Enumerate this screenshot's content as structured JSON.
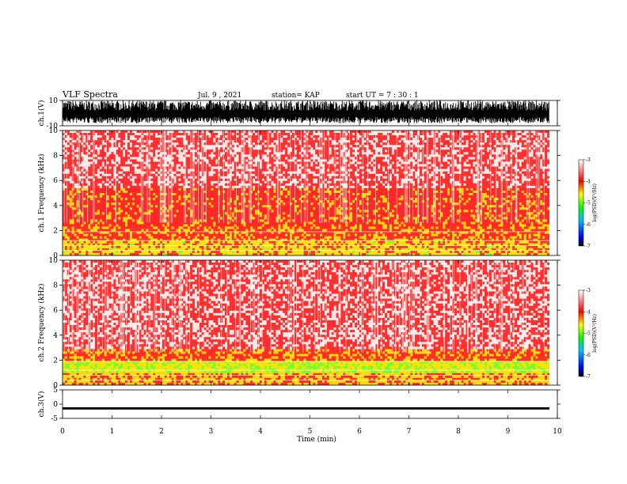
{
  "header": {
    "title": "VLF Spectra",
    "date": "Jul. 9 , 2021",
    "station": "station= KAP",
    "start": "start UT = 7 : 30 : 1"
  },
  "chart_data": [
    {
      "type": "line",
      "name": "ch1-waveform",
      "ylabel": "ch.1(V)",
      "ylim": [
        -10,
        10
      ],
      "yticks": [
        "10",
        "-10"
      ],
      "xlim": [
        0,
        10
      ],
      "series": [
        {
          "values_summary": "dense waveform, amplitude roughly -8 to 10 V"
        }
      ]
    },
    {
      "type": "heatmap",
      "name": "ch1-spectrogram",
      "ylabel": "ch.1 Frequency (kHz)",
      "ylim": [
        0,
        10
      ],
      "yticks": [
        "0",
        "2",
        "4",
        "6",
        "8",
        "10"
      ],
      "xlim": [
        0,
        10
      ],
      "colorbar": {
        "label": "log(PSD)(V²/Hz)",
        "ticks": [
          "-3",
          "-4",
          "-5",
          "-6",
          "-7"
        ],
        "range": [
          -7,
          -3
        ]
      },
      "bands": [
        {
          "from": 0,
          "to": 1.2,
          "level": -4.6
        },
        {
          "from": 1.2,
          "to": 2.4,
          "level": -4.3
        },
        {
          "from": 2.4,
          "to": 5.4,
          "level": -4.2
        },
        {
          "from": 5.4,
          "to": 10,
          "level": -3.6
        }
      ]
    },
    {
      "type": "heatmap",
      "name": "ch2-spectrogram",
      "ylabel": "ch.2 Frequency (kHz)",
      "ylim": [
        0,
        10
      ],
      "yticks": [
        "0",
        "2",
        "4",
        "6",
        "8",
        "10"
      ],
      "xlim": [
        0,
        10
      ],
      "colorbar": {
        "label": "log(PSD)(V²/Hz)",
        "ticks": [
          "-3",
          "-4",
          "-5",
          "-6",
          "-7"
        ],
        "range": [
          -7,
          -3
        ]
      },
      "bands": [
        {
          "from": 0,
          "to": 1.0,
          "level": -4.5
        },
        {
          "from": 1.0,
          "to": 2.0,
          "level": -4.9
        },
        {
          "from": 2.0,
          "to": 2.8,
          "level": -4.3
        },
        {
          "from": 2.8,
          "to": 10,
          "level": -3.6
        }
      ]
    },
    {
      "type": "line",
      "name": "ch3-waveform",
      "ylabel": "ch.3(V)",
      "ylim": [
        -5,
        5
      ],
      "yticks": [
        "5",
        "0",
        "-5"
      ],
      "xlim": [
        0,
        10
      ],
      "series": [
        {
          "values_summary": "narrow band about -1.5 V"
        }
      ]
    }
  ],
  "x_axis": {
    "label": "Time (min)",
    "ticks": [
      "0",
      "1",
      "2",
      "3",
      "4",
      "5",
      "6",
      "7",
      "8",
      "9",
      "10"
    ],
    "data_end": 9.84
  },
  "colors": {
    "high": "#ff0000",
    "mid": "#ffff00",
    "low": "#00ff00",
    "lower": "#0000ff",
    "lowest": "#000000"
  }
}
